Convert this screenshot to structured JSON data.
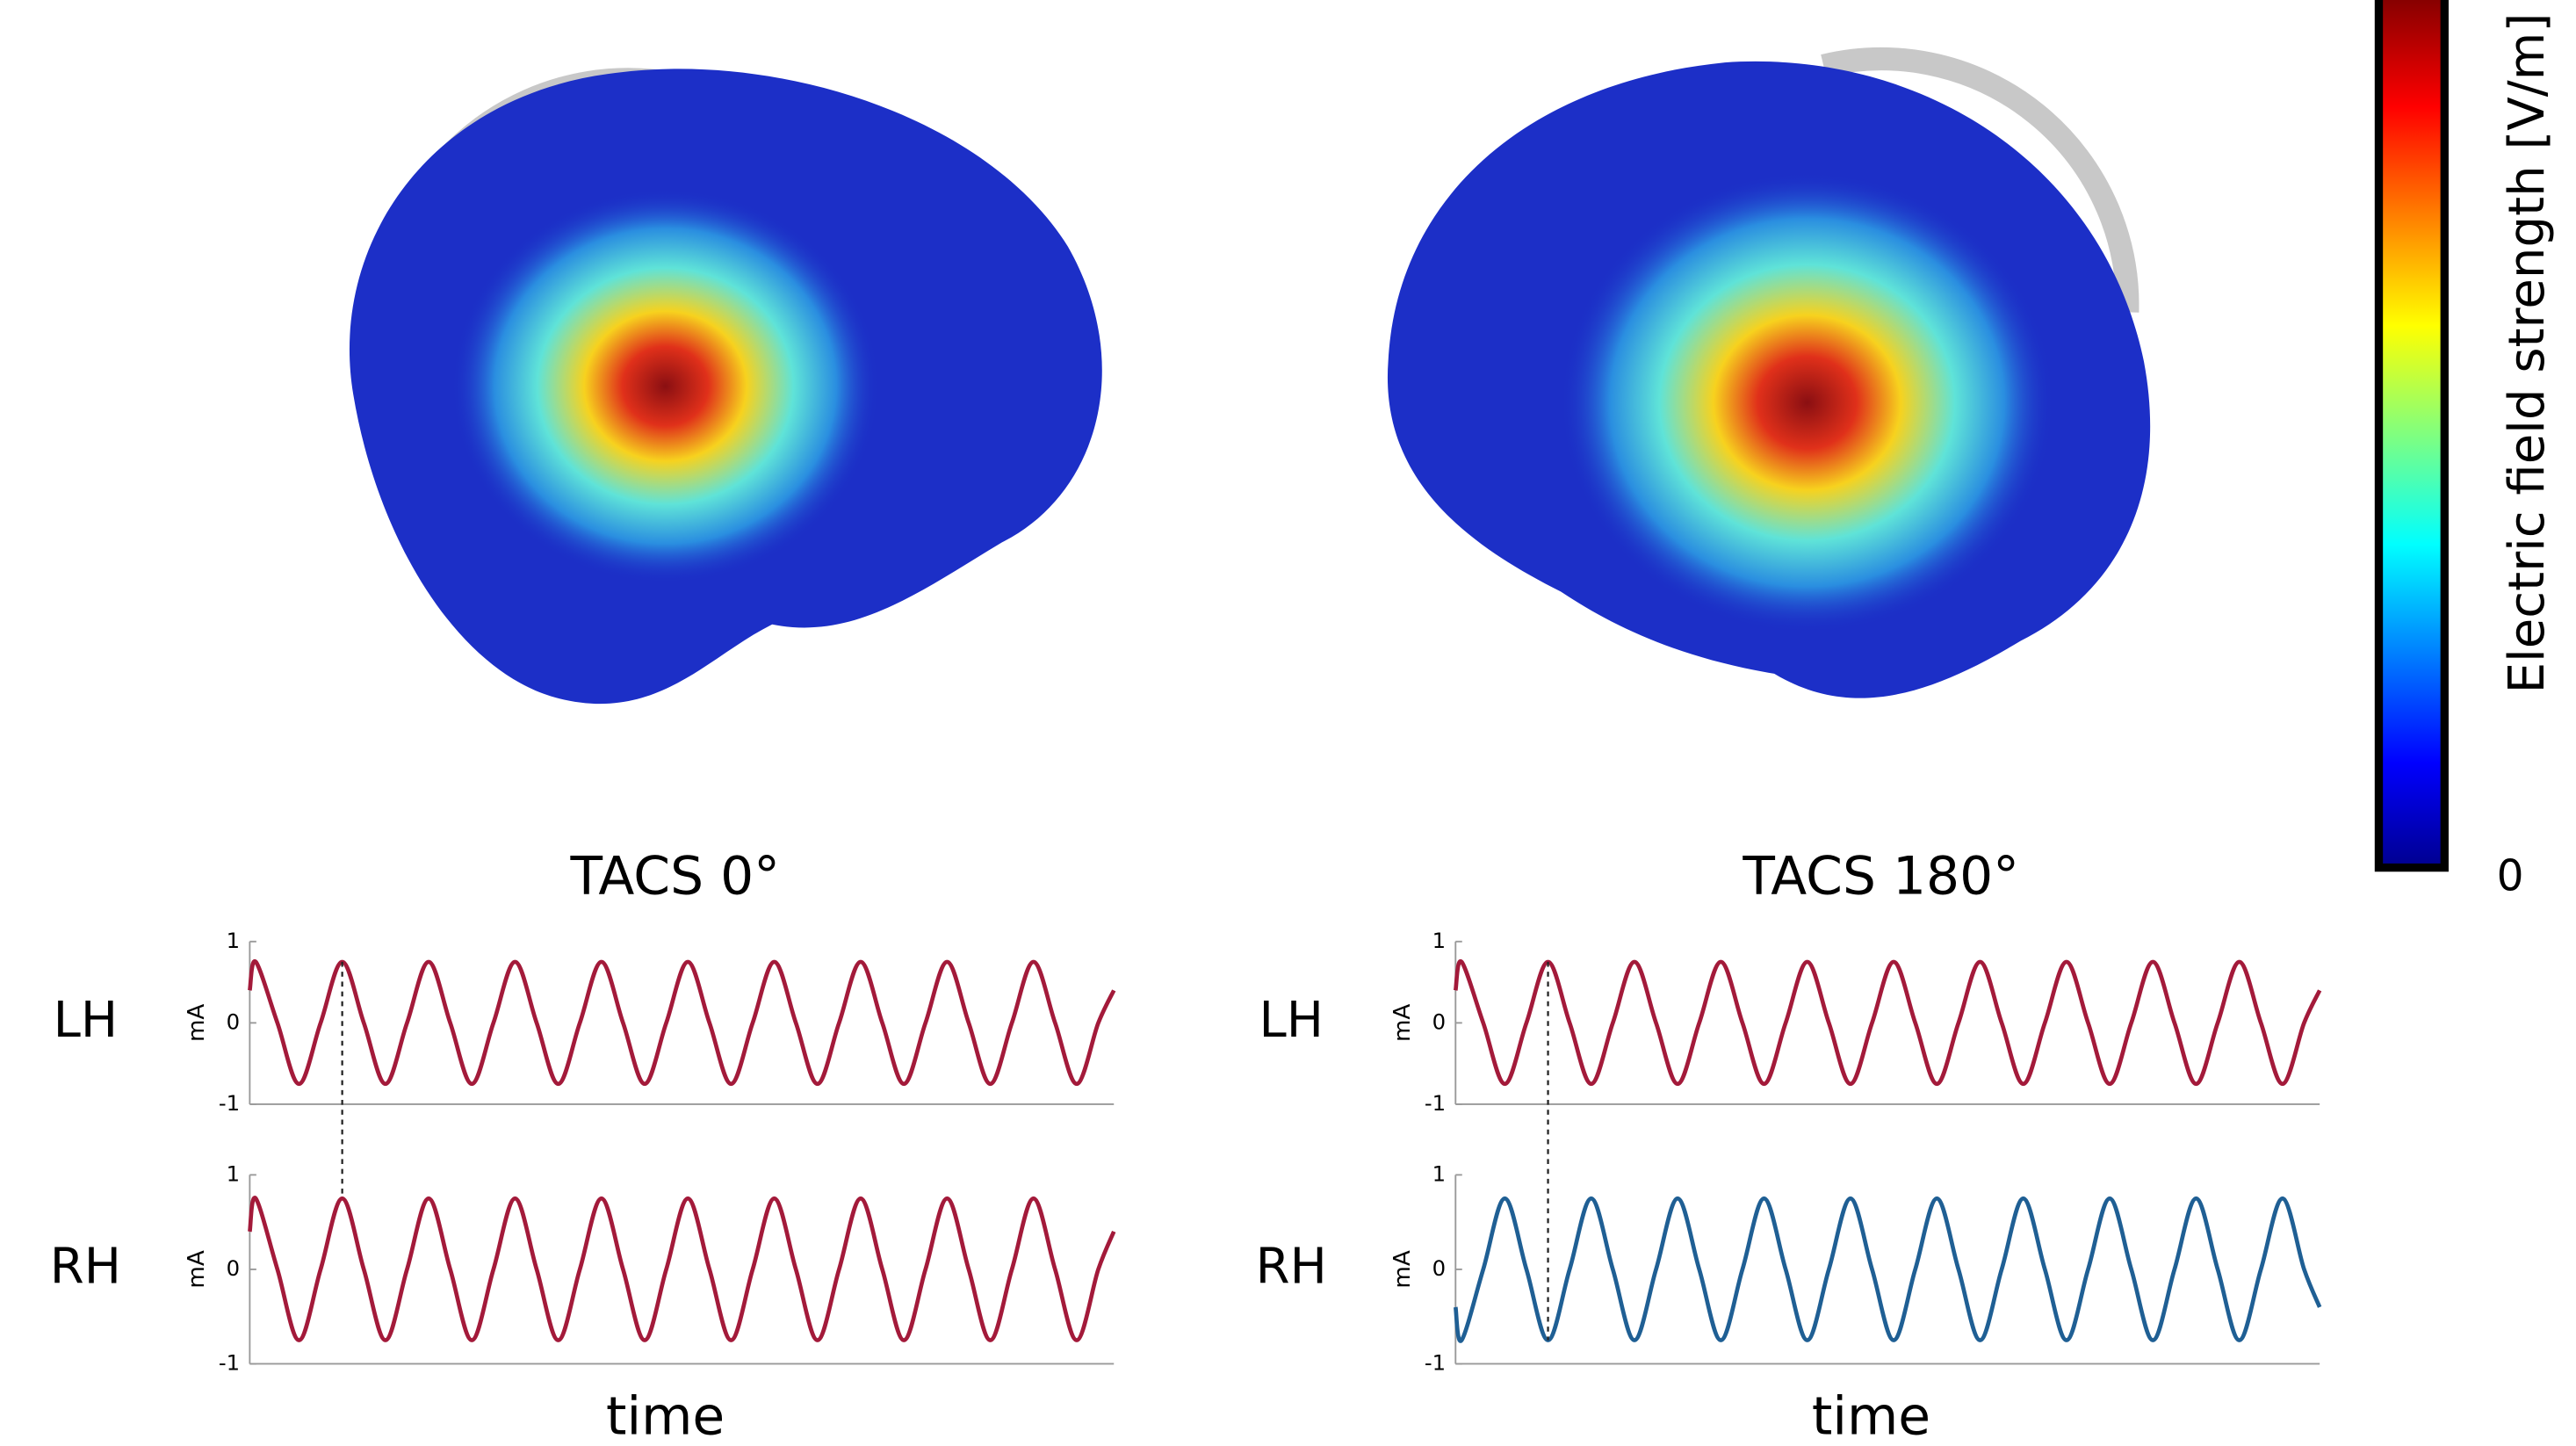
{
  "chart_data": [
    {
      "type": "line",
      "title": "TACS 0°",
      "xlabel": "time",
      "ylabel": "mA",
      "x": [
        0,
        0.07,
        0.32,
        0.57,
        0.82,
        1.07,
        1.32,
        1.57,
        1.82,
        2.07,
        2.32,
        2.57,
        2.82,
        3.07,
        3.32,
        3.57,
        3.82,
        4.07,
        4.32,
        4.57,
        4.82,
        5.07,
        5.32,
        5.57,
        5.82,
        6.07,
        6.32,
        6.57,
        6.82,
        7.07,
        7.32,
        7.57,
        7.82,
        8.07,
        8.32,
        8.57,
        8.82,
        9.07,
        9.32,
        9.57,
        9.82,
        10
      ],
      "xlim": [
        0,
        10
      ],
      "ylim": [
        -1,
        1
      ],
      "yticks": [
        -1,
        0,
        1
      ],
      "series": [
        {
          "name": "LH",
          "color": "#a31a3a",
          "values": [
            0.4,
            0.75,
            0,
            -0.75,
            0,
            0.75,
            0,
            -0.75,
            0,
            0.75,
            0,
            -0.75,
            0,
            0.75,
            0,
            -0.75,
            0,
            0.75,
            0,
            -0.75,
            0,
            0.75,
            0,
            -0.75,
            0,
            0.75,
            0,
            -0.75,
            0,
            0.75,
            0,
            -0.75,
            0,
            0.75,
            0,
            -0.75,
            0,
            0.75,
            0,
            -0.75,
            0,
            0.4
          ]
        },
        {
          "name": "RH",
          "color": "#a31a3a",
          "values": [
            0.4,
            0.75,
            0,
            -0.75,
            0,
            0.75,
            0,
            -0.75,
            0,
            0.75,
            0,
            -0.75,
            0,
            0.75,
            0,
            -0.75,
            0,
            0.75,
            0,
            -0.75,
            0,
            0.75,
            0,
            -0.75,
            0,
            0.75,
            0,
            -0.75,
            0,
            0.75,
            0,
            -0.75,
            0,
            0.75,
            0,
            -0.75,
            0,
            0.75,
            0,
            -0.75,
            0,
            0.4
          ]
        }
      ]
    },
    {
      "type": "line",
      "title": "TACS 180°",
      "xlabel": "time",
      "ylabel": "mA",
      "x": [
        0,
        0.07,
        0.32,
        0.57,
        0.82,
        1.07,
        1.32,
        1.57,
        1.82,
        2.07,
        2.32,
        2.57,
        2.82,
        3.07,
        3.32,
        3.57,
        3.82,
        4.07,
        4.32,
        4.57,
        4.82,
        5.07,
        5.32,
        5.57,
        5.82,
        6.07,
        6.32,
        6.57,
        6.82,
        7.07,
        7.32,
        7.57,
        7.82,
        8.07,
        8.32,
        8.57,
        8.82,
        9.07,
        9.32,
        9.57,
        9.82,
        10
      ],
      "xlim": [
        0,
        10
      ],
      "ylim": [
        -1,
        1
      ],
      "yticks": [
        -1,
        0,
        1
      ],
      "series": [
        {
          "name": "LH",
          "color": "#a31a3a",
          "values": [
            0.4,
            0.75,
            0,
            -0.75,
            0,
            0.75,
            0,
            -0.75,
            0,
            0.75,
            0,
            -0.75,
            0,
            0.75,
            0,
            -0.75,
            0,
            0.75,
            0,
            -0.75,
            0,
            0.75,
            0,
            -0.75,
            0,
            0.75,
            0,
            -0.75,
            0,
            0.75,
            0,
            -0.75,
            0,
            0.75,
            0,
            -0.75,
            0,
            0.75,
            0,
            -0.75,
            0,
            0.4
          ]
        },
        {
          "name": "RH",
          "color": "#1f5f94",
          "values": [
            -0.4,
            -0.75,
            0,
            0.75,
            0,
            -0.75,
            0,
            0.75,
            0,
            -0.75,
            0,
            0.75,
            0,
            -0.75,
            0,
            0.75,
            0,
            -0.75,
            0,
            0.75,
            0,
            -0.75,
            0,
            0.75,
            0,
            -0.75,
            0,
            0.75,
            0,
            -0.75,
            0,
            0.75,
            0,
            -0.75,
            0,
            0.75,
            0,
            -0.75,
            0,
            0.75,
            0,
            -0.4
          ]
        }
      ]
    }
  ],
  "colorbar": {
    "label": "Electric field strength [V/m]",
    "ticks": [
      0
    ]
  }
}
